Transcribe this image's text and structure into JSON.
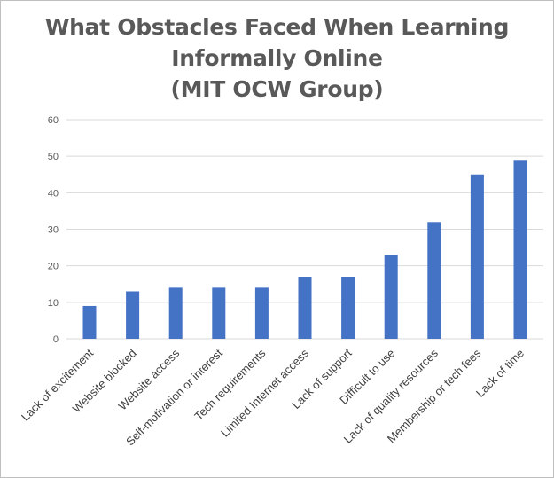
{
  "chart_data": {
    "type": "bar",
    "title_lines": [
      "What Obstacles Faced When Learning",
      "Informally Online",
      "(MIT OCW Group)"
    ],
    "categories": [
      "Lack of excitement",
      "Website blocked",
      "Website access",
      "Self-motivation or interest",
      "Tech requirements",
      "Limited Internet access",
      "Lack of support",
      "Difficult to use",
      "Lack of quality resources",
      "Membership or tech fees",
      "Lack of time"
    ],
    "values": [
      9,
      13,
      14,
      14,
      14,
      17,
      17,
      23,
      32,
      45,
      49
    ],
    "ylim": [
      0,
      60
    ],
    "yticks": [
      "0",
      "10",
      "20",
      "30",
      "40",
      "50",
      "60"
    ],
    "grid": true,
    "bar_color": "#4472c4",
    "grid_color": "#d9d9d9",
    "xlabel": "",
    "ylabel": ""
  }
}
